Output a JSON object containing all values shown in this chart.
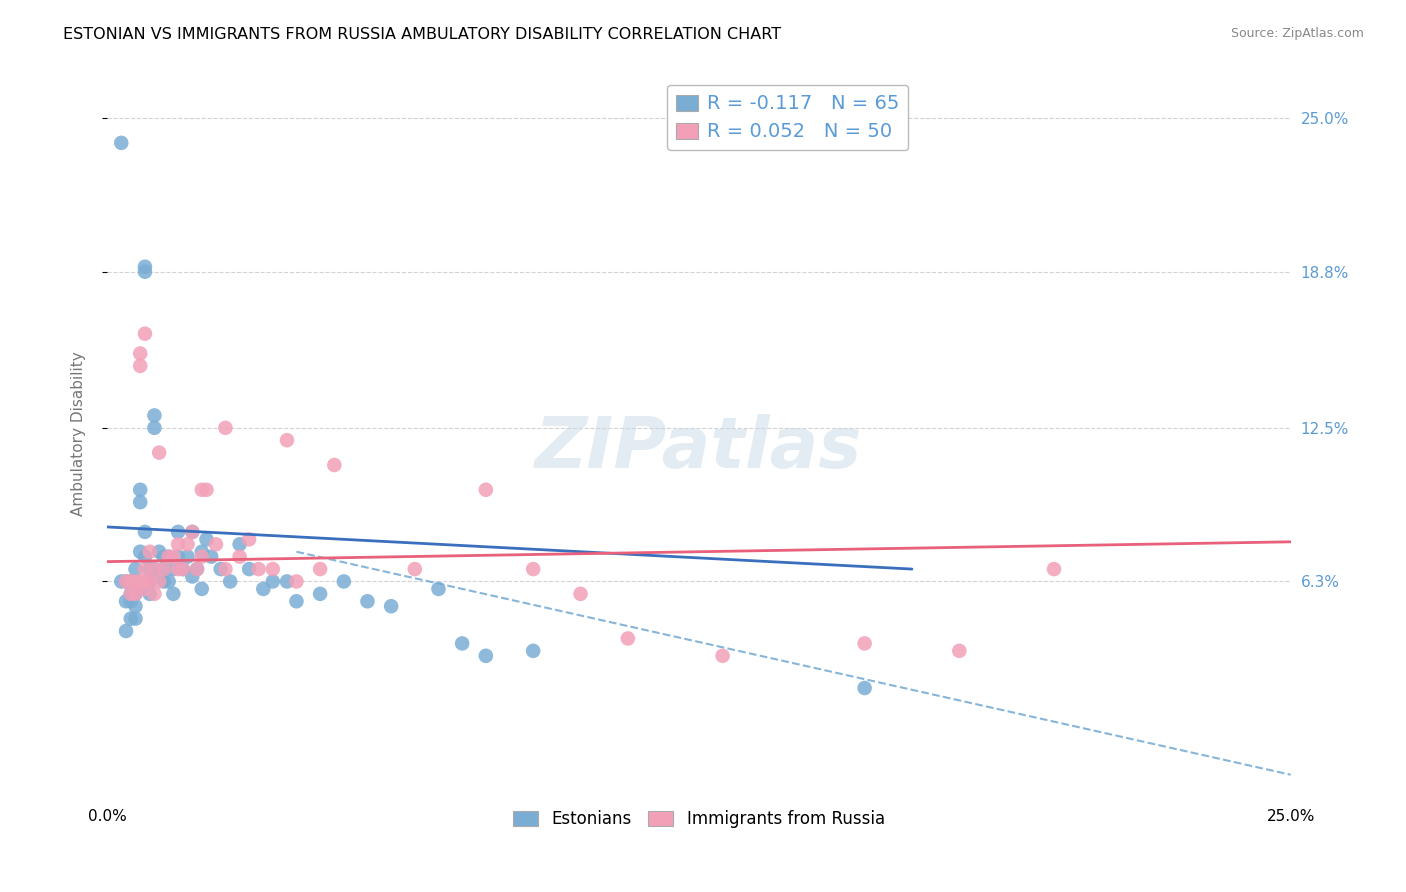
{
  "title": "ESTONIAN VS IMMIGRANTS FROM RUSSIA AMBULATORY DISABILITY CORRELATION CHART",
  "source": "Source: ZipAtlas.com",
  "ylabel": "Ambulatory Disability",
  "xlim": [
    0.0,
    0.25
  ],
  "ylim": [
    -0.025,
    0.27
  ],
  "ytick_labels": [
    "6.3%",
    "12.5%",
    "18.8%",
    "25.0%"
  ],
  "ytick_values": [
    0.063,
    0.125,
    0.188,
    0.25
  ],
  "xtick_labels": [
    "0.0%",
    "25.0%"
  ],
  "xtick_values": [
    0.0,
    0.25
  ],
  "grid_color": "#c8c8c8",
  "background_color": "#ffffff",
  "blue_color": "#7aadd4",
  "pink_color": "#f2a0b8",
  "blue_line_color": "#3a6fbe",
  "pink_line_color": "#e8607a",
  "blue_R": -0.117,
  "blue_N": 65,
  "pink_R": 0.052,
  "pink_N": 50,
  "blue_x": [
    0.003,
    0.004,
    0.004,
    0.005,
    0.005,
    0.005,
    0.005,
    0.006,
    0.006,
    0.006,
    0.006,
    0.006,
    0.007,
    0.007,
    0.007,
    0.007,
    0.008,
    0.008,
    0.008,
    0.008,
    0.009,
    0.009,
    0.009,
    0.01,
    0.01,
    0.01,
    0.011,
    0.011,
    0.012,
    0.012,
    0.012,
    0.013,
    0.013,
    0.014,
    0.014,
    0.015,
    0.015,
    0.016,
    0.017,
    0.018,
    0.018,
    0.019,
    0.02,
    0.021,
    0.022,
    0.024,
    0.026,
    0.028,
    0.03,
    0.033,
    0.035,
    0.038,
    0.04,
    0.045,
    0.05,
    0.055,
    0.06,
    0.07,
    0.075,
    0.08,
    0.09,
    0.16,
    0.003,
    0.004,
    0.02
  ],
  "blue_y": [
    0.24,
    0.063,
    0.055,
    0.063,
    0.058,
    0.055,
    0.048,
    0.068,
    0.063,
    0.058,
    0.053,
    0.048,
    0.1,
    0.095,
    0.075,
    0.06,
    0.19,
    0.188,
    0.083,
    0.073,
    0.068,
    0.063,
    0.058,
    0.13,
    0.125,
    0.068,
    0.075,
    0.065,
    0.073,
    0.068,
    0.063,
    0.073,
    0.063,
    0.068,
    0.058,
    0.083,
    0.073,
    0.068,
    0.073,
    0.083,
    0.065,
    0.068,
    0.075,
    0.08,
    0.073,
    0.068,
    0.063,
    0.078,
    0.068,
    0.06,
    0.063,
    0.063,
    0.055,
    0.058,
    0.063,
    0.055,
    0.053,
    0.06,
    0.038,
    0.033,
    0.035,
    0.02,
    0.063,
    0.043,
    0.06
  ],
  "pink_x": [
    0.004,
    0.005,
    0.005,
    0.006,
    0.006,
    0.007,
    0.007,
    0.007,
    0.008,
    0.008,
    0.008,
    0.009,
    0.009,
    0.01,
    0.01,
    0.011,
    0.011,
    0.012,
    0.013,
    0.014,
    0.015,
    0.016,
    0.017,
    0.018,
    0.019,
    0.02,
    0.021,
    0.023,
    0.025,
    0.028,
    0.03,
    0.032,
    0.035,
    0.038,
    0.04,
    0.045,
    0.048,
    0.065,
    0.08,
    0.09,
    0.1,
    0.11,
    0.13,
    0.16,
    0.18,
    0.2,
    0.008,
    0.015,
    0.02,
    0.025
  ],
  "pink_y": [
    0.063,
    0.063,
    0.058,
    0.063,
    0.058,
    0.155,
    0.15,
    0.063,
    0.163,
    0.068,
    0.063,
    0.075,
    0.063,
    0.068,
    0.058,
    0.115,
    0.063,
    0.068,
    0.073,
    0.073,
    0.078,
    0.068,
    0.078,
    0.083,
    0.068,
    0.073,
    0.1,
    0.078,
    0.125,
    0.073,
    0.08,
    0.068,
    0.068,
    0.12,
    0.063,
    0.068,
    0.11,
    0.068,
    0.1,
    0.068,
    0.058,
    0.04,
    0.033,
    0.038,
    0.035,
    0.068,
    0.06,
    0.068,
    0.1,
    0.068
  ]
}
